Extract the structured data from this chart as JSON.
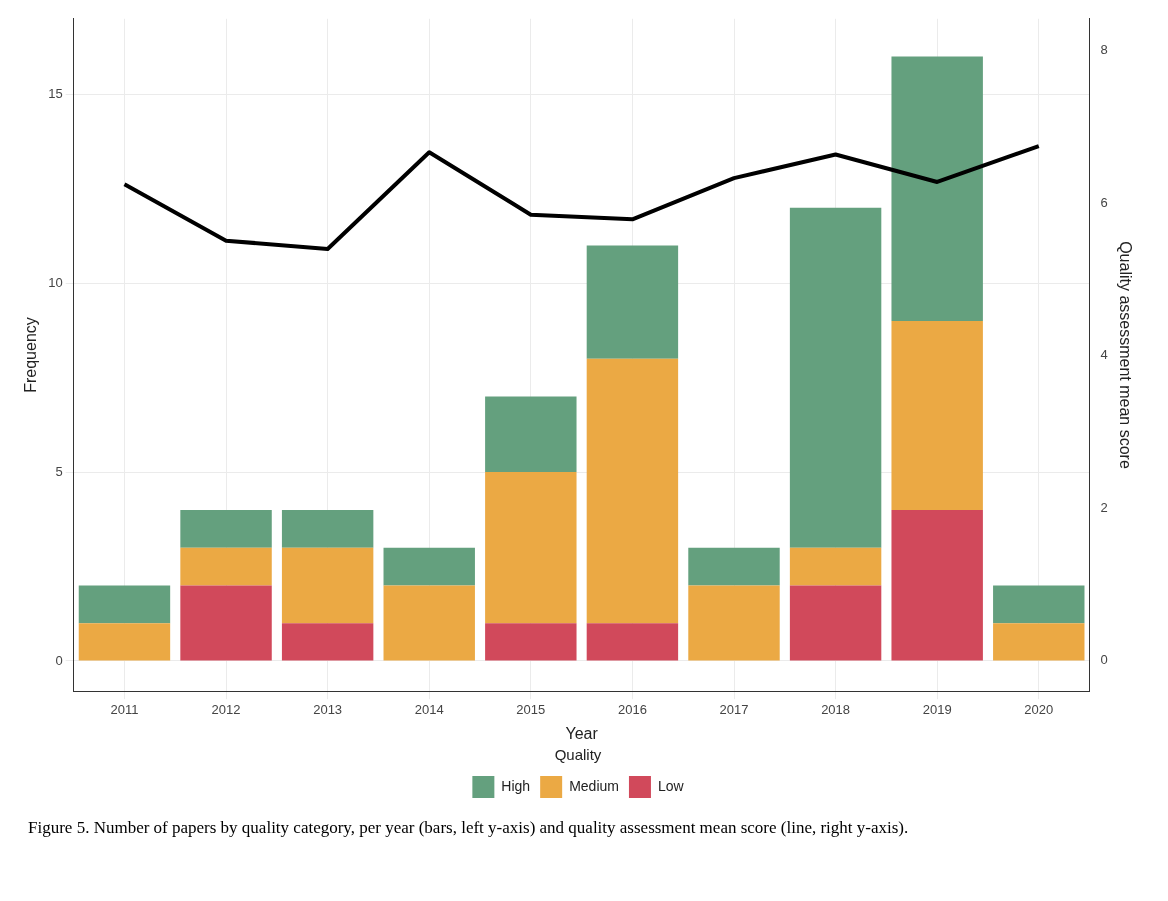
{
  "chart_data": {
    "type": "bar",
    "xlabel": "Year",
    "ylabel": "Frequency",
    "y2label": "Quality assessment mean score",
    "legend_title": "Quality",
    "categories": [
      "2011",
      "2012",
      "2013",
      "2014",
      "2015",
      "2016",
      "2017",
      "2018",
      "2019",
      "2020"
    ],
    "stacked": true,
    "series": [
      {
        "name": "Low",
        "color": "#d1495b",
        "values": [
          0,
          2,
          1,
          0,
          1,
          1,
          0,
          2,
          4,
          0
        ]
      },
      {
        "name": "Medium",
        "color": "#eba944",
        "values": [
          1,
          1,
          2,
          2,
          4,
          7,
          2,
          1,
          5,
          1
        ]
      },
      {
        "name": "High",
        "color": "#64a07e",
        "values": [
          1,
          1,
          1,
          1,
          2,
          3,
          1,
          9,
          7,
          1
        ]
      },
      {
        "type": "line",
        "axis": "y2",
        "color": "#000000",
        "values": [
          6.25,
          5.51,
          5.4,
          6.67,
          5.85,
          5.79,
          6.33,
          6.64,
          6.28,
          6.75
        ]
      }
    ],
    "ylim": [
      -0.8,
      17
    ],
    "yticks": [
      0,
      5,
      10,
      15
    ],
    "y2lim": [
      -0.4,
      8.42
    ],
    "y2ticks": [
      0,
      2,
      4,
      6,
      8
    ],
    "grid": true,
    "legend": "bottom",
    "marker": "none",
    "line_style": "solid",
    "annotations": [
      "Figure 5. Number of papers by quality category, per year (bars, left y-axis) and quality assessment mean score (line, right y-axis)."
    ]
  }
}
